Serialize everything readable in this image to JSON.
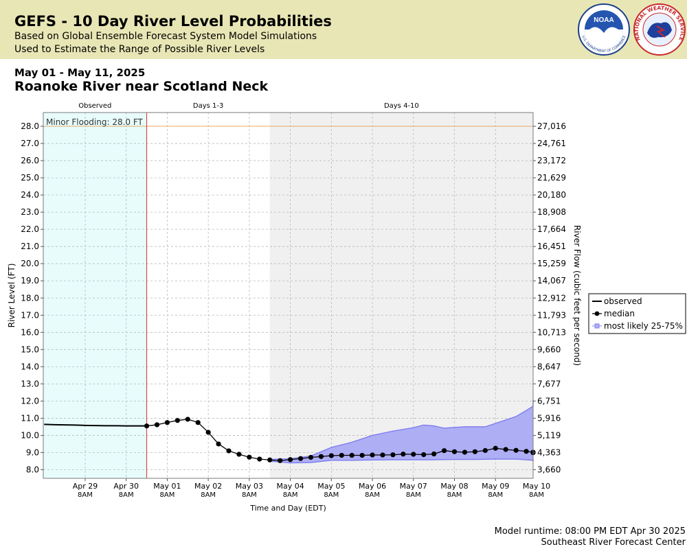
{
  "header": {
    "title": "GEFS - 10 Day River Level Probabilities",
    "subtitle_1": "Based on Global Ensemble Forecast System Model Simulations",
    "subtitle_2": "Used to Estimate the Range of Possible River Levels",
    "noaa_logo_text": "NOAA",
    "noaa_ring_text": "U.S. DEPARTMENT OF COMMERCE",
    "nws_ring_text": "NATIONAL WEATHER SERVICE"
  },
  "date_range": "May 01 - May 11, 2025",
  "station_name": "Roanoke River near Scotland Neck",
  "footer": {
    "runtime": "Model runtime: 08:00 PM EDT Apr 30 2025",
    "center": "Southeast River Forecast Center"
  },
  "colors": {
    "observed_band": "#e8fcfc",
    "extended_band": "#f0f0f0",
    "flood_line": "#e8a860",
    "now_line": "#cc3333",
    "range_fill": "#aeaef5",
    "range_stroke": "#8080f0",
    "median": "#000000"
  },
  "chart_data": {
    "type": "line",
    "section_labels": [
      "Observed",
      "Days 1-3",
      "Days 4-10"
    ],
    "xlabel": "Time and Day (EDT)",
    "ylabel": "River Level (FT)",
    "y2label": "River Flow (cubic feet per second)",
    "ylim": [
      7.5,
      28.8
    ],
    "x_range_hours": [
      -60.5,
      226
    ],
    "x_ticks": [
      {
        "day": "Apr 29",
        "time": "8AM",
        "hour": -36
      },
      {
        "day": "Apr 30",
        "time": "8AM",
        "hour": -12
      },
      {
        "day": "May 01",
        "time": "8AM",
        "hour": 12
      },
      {
        "day": "May 02",
        "time": "8AM",
        "hour": 36
      },
      {
        "day": "May 03",
        "time": "8AM",
        "hour": 60
      },
      {
        "day": "May 04",
        "time": "8AM",
        "hour": 84
      },
      {
        "day": "May 05",
        "time": "8AM",
        "hour": 108
      },
      {
        "day": "May 06",
        "time": "8AM",
        "hour": 132
      },
      {
        "day": "May 07",
        "time": "8AM",
        "hour": 156
      },
      {
        "day": "May 08",
        "time": "8AM",
        "hour": 180
      },
      {
        "day": "May 09",
        "time": "8AM",
        "hour": 204
      },
      {
        "day": "May 10",
        "time": "8AM",
        "hour": 228
      }
    ],
    "y_ticks": [
      {
        "ft": "28.0",
        "flow": "27,016"
      },
      {
        "ft": "27.0",
        "flow": "24,761"
      },
      {
        "ft": "26.0",
        "flow": "23,172"
      },
      {
        "ft": "25.0",
        "flow": "21,629"
      },
      {
        "ft": "24.0",
        "flow": "20,180"
      },
      {
        "ft": "23.0",
        "flow": "18,908"
      },
      {
        "ft": "22.0",
        "flow": "17,664"
      },
      {
        "ft": "21.0",
        "flow": "16,451"
      },
      {
        "ft": "20.0",
        "flow": "15,259"
      },
      {
        "ft": "19.0",
        "flow": "14,067"
      },
      {
        "ft": "18.0",
        "flow": "12,912"
      },
      {
        "ft": "17.0",
        "flow": "11,793"
      },
      {
        "ft": "16.0",
        "flow": "10,713"
      },
      {
        "ft": "15.0",
        "flow": "9,660"
      },
      {
        "ft": "14.0",
        "flow": "8,647"
      },
      {
        "ft": "13.0",
        "flow": "7,677"
      },
      {
        "ft": "12.0",
        "flow": "6,751"
      },
      {
        "ft": "11.0",
        "flow": "5,916"
      },
      {
        "ft": "10.0",
        "flow": "5,119"
      },
      {
        "ft": "9.0",
        "flow": "4,363"
      },
      {
        "ft": "8.0",
        "flow": "3,660"
      }
    ],
    "flood_stage": {
      "label": "Minor Flooding: 28.0 FT",
      "value": 28.0
    },
    "forecast_start_hour": 0,
    "extended_start_hour": 72,
    "observed": [
      [
        -60,
        10.64
      ],
      [
        -54,
        10.62
      ],
      [
        -48,
        10.61
      ],
      [
        -42,
        10.6
      ],
      [
        -36,
        10.58
      ],
      [
        -30,
        10.57
      ],
      [
        -24,
        10.56
      ],
      [
        -18,
        10.56
      ],
      [
        -12,
        10.55
      ],
      [
        -6,
        10.55
      ],
      [
        0,
        10.55
      ]
    ],
    "median": [
      [
        0,
        10.55
      ],
      [
        6,
        10.62
      ],
      [
        12,
        10.75
      ],
      [
        18,
        10.87
      ],
      [
        24,
        10.94
      ],
      [
        30,
        10.75
      ],
      [
        36,
        10.18
      ],
      [
        42,
        9.5
      ],
      [
        48,
        9.1
      ],
      [
        54,
        8.9
      ],
      [
        60,
        8.73
      ],
      [
        66,
        8.62
      ],
      [
        72,
        8.57
      ],
      [
        78,
        8.53
      ],
      [
        84,
        8.59
      ],
      [
        90,
        8.65
      ],
      [
        96,
        8.72
      ],
      [
        102,
        8.77
      ],
      [
        108,
        8.82
      ],
      [
        114,
        8.84
      ],
      [
        120,
        8.84
      ],
      [
        126,
        8.84
      ],
      [
        132,
        8.86
      ],
      [
        138,
        8.86
      ],
      [
        144,
        8.87
      ],
      [
        150,
        8.91
      ],
      [
        156,
        8.9
      ],
      [
        162,
        8.88
      ],
      [
        168,
        8.92
      ],
      [
        174,
        9.11
      ],
      [
        180,
        9.05
      ],
      [
        186,
        9.02
      ],
      [
        192,
        9.05
      ],
      [
        198,
        9.12
      ],
      [
        204,
        9.25
      ],
      [
        210,
        9.18
      ],
      [
        216,
        9.13
      ],
      [
        222,
        9.07
      ],
      [
        228,
        9.02
      ],
      [
        234,
        8.99
      ]
    ],
    "range_upper": [
      [
        72,
        8.6
      ],
      [
        84,
        8.64
      ],
      [
        96,
        8.8
      ],
      [
        108,
        9.3
      ],
      [
        120,
        9.6
      ],
      [
        132,
        10.0
      ],
      [
        144,
        10.25
      ],
      [
        156,
        10.45
      ],
      [
        162,
        10.6
      ],
      [
        168,
        10.55
      ],
      [
        174,
        10.42
      ],
      [
        186,
        10.5
      ],
      [
        198,
        10.5
      ],
      [
        204,
        10.7
      ],
      [
        216,
        11.1
      ],
      [
        222,
        11.45
      ],
      [
        234,
        11.7
      ],
      [
        240,
        12.07
      ]
    ],
    "range_lower": [
      [
        72,
        8.5
      ],
      [
        84,
        8.4
      ],
      [
        96,
        8.42
      ],
      [
        108,
        8.55
      ],
      [
        120,
        8.55
      ],
      [
        132,
        8.57
      ],
      [
        144,
        8.58
      ],
      [
        156,
        8.58
      ],
      [
        168,
        8.58
      ],
      [
        180,
        8.6
      ],
      [
        192,
        8.6
      ],
      [
        204,
        8.62
      ],
      [
        216,
        8.62
      ],
      [
        228,
        8.55
      ],
      [
        240,
        8.5
      ]
    ],
    "legend": {
      "position": "right",
      "entries": [
        "observed",
        "median",
        "most likely 25-75%"
      ]
    }
  }
}
